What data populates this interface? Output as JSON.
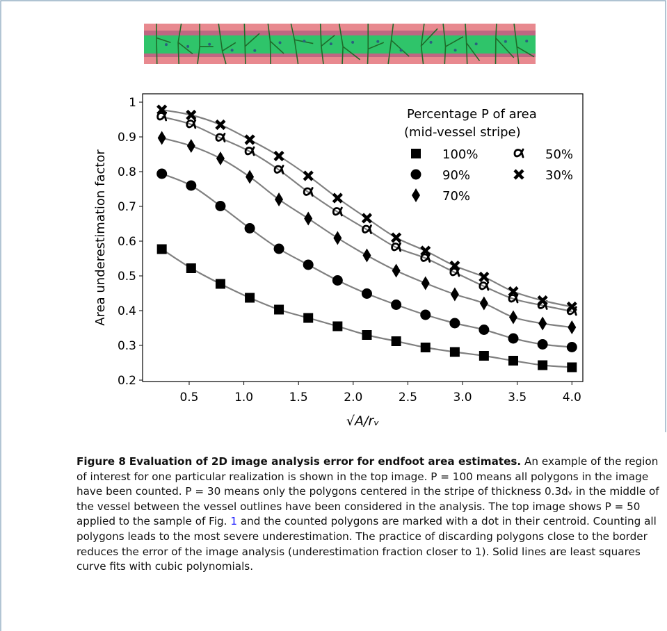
{
  "chart_data": {
    "type": "scatter",
    "x_label": "√A/rᵥ",
    "y_label": "Area underestimation factor",
    "legend_title": [
      "Percentage P of area",
      "(mid-vessel stripe)"
    ],
    "x": [
      0.25,
      0.518,
      0.786,
      1.054,
      1.321,
      1.589,
      1.857,
      2.125,
      2.393,
      2.661,
      2.929,
      3.196,
      3.464,
      3.732,
      4.0
    ],
    "series": [
      {
        "name": "100%",
        "marker": "square",
        "color": "#000000",
        "values": [
          0.577,
          0.522,
          0.477,
          0.437,
          0.403,
          0.379,
          0.355,
          0.33,
          0.312,
          0.294,
          0.281,
          0.27,
          0.256,
          0.243,
          0.237
        ]
      },
      {
        "name": "90%",
        "marker": "circle",
        "color": "#000000",
        "values": [
          0.794,
          0.76,
          0.701,
          0.637,
          0.578,
          0.532,
          0.487,
          0.449,
          0.417,
          0.388,
          0.364,
          0.345,
          0.32,
          0.303,
          0.295
        ]
      },
      {
        "name": "70%",
        "marker": "diamond",
        "color": "#000000",
        "values": [
          0.897,
          0.874,
          0.838,
          0.785,
          0.72,
          0.665,
          0.609,
          0.559,
          0.515,
          0.479,
          0.447,
          0.421,
          0.381,
          0.363,
          0.352
        ]
      },
      {
        "name": "50%",
        "marker": "alpha",
        "color": "#000000",
        "values": [
          0.958,
          0.936,
          0.897,
          0.858,
          0.805,
          0.741,
          0.684,
          0.633,
          0.582,
          0.551,
          0.51,
          0.47,
          0.434,
          0.415,
          0.398
        ]
      },
      {
        "name": "30%",
        "marker": "cross",
        "color": "#000000",
        "values": [
          0.978,
          0.963,
          0.935,
          0.892,
          0.845,
          0.788,
          0.724,
          0.666,
          0.61,
          0.572,
          0.529,
          0.497,
          0.455,
          0.429,
          0.411
        ]
      }
    ],
    "fit_line_color": "#808080",
    "xlim": [
      0.074,
      4.1
    ],
    "ylim": [
      0.196,
      1.024
    ],
    "xticks": [
      0.5,
      1.0,
      1.5,
      2.0,
      2.5,
      3.0,
      3.5,
      4.0
    ],
    "yticks": [
      0.2,
      0.3,
      0.4,
      0.5,
      0.6,
      0.7,
      0.8,
      0.9,
      1.0
    ]
  },
  "caption": {
    "label": "Figure 8",
    "title": "Evaluation of 2D image analysis error for endfoot area estimates.",
    "text_before": "An example of the region of interest for one particular realization is shown in the top image. P = 100 means all polygons in the image have been counted. P = 30 means only the polygons centered in the stripe of thickness 0.3dᵥ in the middle of the vessel between the vessel outlines have been considered in the analysis. The top image shows P = 50 applied to the sample of Fig.",
    "ref": "1",
    "text_after": "and the counted polygons are marked with a dot in their centroid. Counting all polygons leads to the most severe underestimation. The practice of discarding polygons close to the border reduces the error of the image analysis (underestimation fraction closer to 1). Solid lines are least squares curve fits with cubic polynomials."
  }
}
